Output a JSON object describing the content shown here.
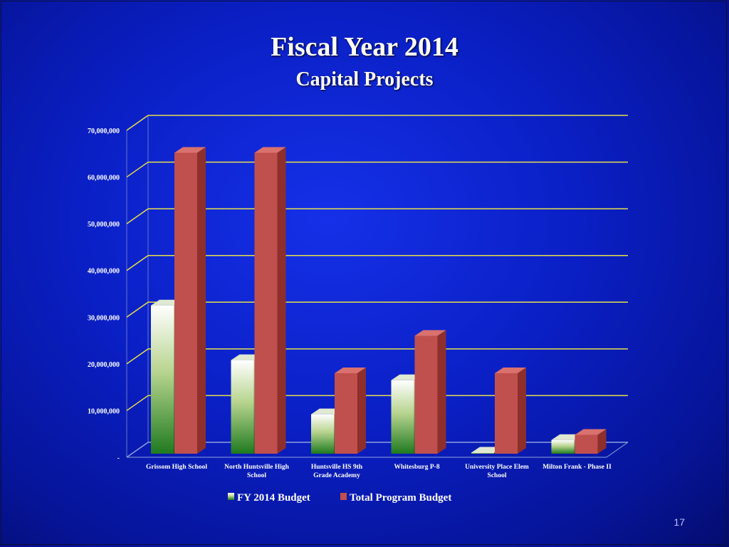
{
  "slide": {
    "title": "Fiscal Year 2014",
    "subtitle": "Capital Projects",
    "page_number": "17"
  },
  "chart_data": {
    "type": "bar",
    "title": "",
    "xlabel": "",
    "ylabel": "",
    "ylim": [
      0,
      70000000
    ],
    "y_ticks": [
      0,
      10000000,
      20000000,
      30000000,
      40000000,
      50000000,
      60000000,
      70000000
    ],
    "y_tick_labels": [
      "-",
      "10,000,000",
      "20,000,000",
      "30,000,000",
      "40,000,000",
      "50,000,000",
      "60,000,000",
      "70,000,000"
    ],
    "categories": [
      [
        "Grissom High School"
      ],
      [
        "North Huntsville High",
        "School"
      ],
      [
        "Huntsville HS 9th",
        "Grade Academy"
      ],
      [
        "Whitesburg  P-8"
      ],
      [
        "University Place Elem",
        "School"
      ],
      [
        "Milton Frank - Phase II"
      ]
    ],
    "series": [
      {
        "name": "FY 2014 Budget",
        "values": [
          32500000,
          20800000,
          9200000,
          16500000,
          1000000,
          3700000
        ],
        "color": "#2e8b2e"
      },
      {
        "name": "Total Program Budget",
        "values": [
          65200000,
          65200000,
          18000000,
          26000000,
          18000000,
          4800000
        ],
        "color": "#c0504d"
      }
    ],
    "grid": true,
    "gridline_color": "#e8e04a",
    "legend_position": "bottom",
    "style": "3d-columns"
  }
}
